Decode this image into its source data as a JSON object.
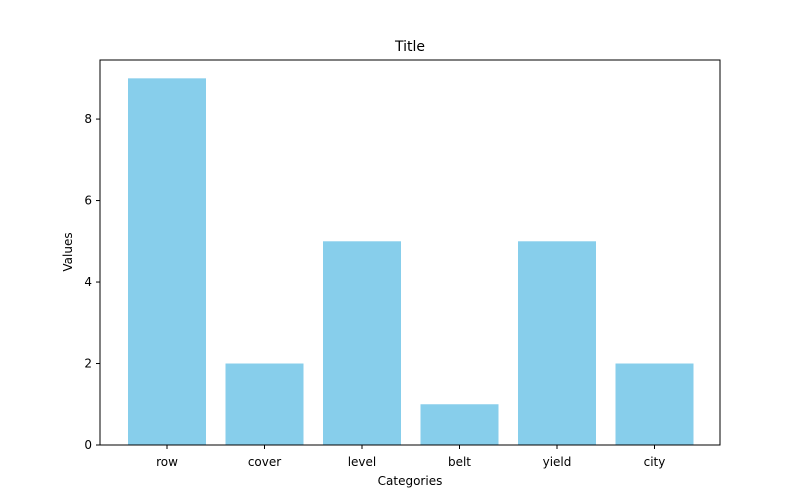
{
  "chart_data": {
    "type": "bar",
    "title": "Title",
    "xlabel": "Categories",
    "ylabel": "Values",
    "categories": [
      "row",
      "cover",
      "level",
      "belt",
      "yield",
      "city"
    ],
    "values": [
      9,
      2,
      5,
      1,
      5,
      2
    ],
    "ylim": [
      0,
      9.45
    ],
    "yticks": [
      0,
      2,
      4,
      6,
      8
    ],
    "bar_color": "#87ceeb",
    "grid": false,
    "legend": "none"
  }
}
